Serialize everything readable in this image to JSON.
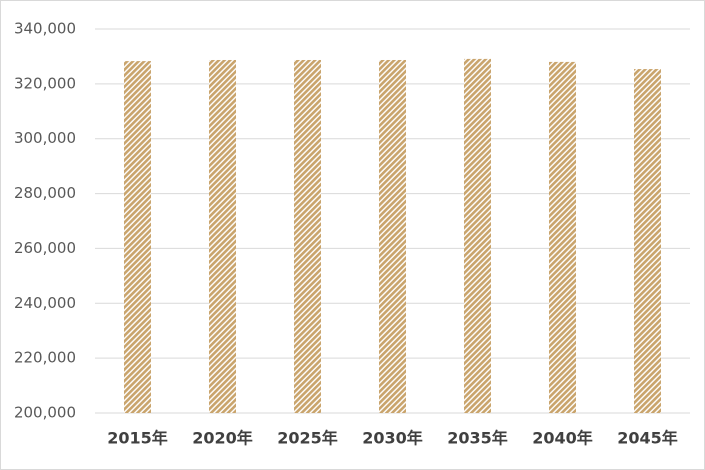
{
  "chart_data": {
    "type": "bar",
    "categories": [
      "2015年",
      "2020年",
      "2025年",
      "2030年",
      "2035年",
      "2040年",
      "2045年"
    ],
    "values": [
      328300,
      328700,
      328700,
      328700,
      329100,
      328000,
      325400
    ],
    "color": "#c9a46c",
    "ylim": [
      200000,
      340000
    ],
    "yticks": [
      {
        "value": 200000,
        "label": "200,000"
      },
      {
        "value": 220000,
        "label": "220,000"
      },
      {
        "value": 240000,
        "label": "240,000"
      },
      {
        "value": 260000,
        "label": "260,000"
      },
      {
        "value": 280000,
        "label": "280,000"
      },
      {
        "value": 300000,
        "label": "300,000"
      },
      {
        "value": 320000,
        "label": "320,000"
      },
      {
        "value": 340000,
        "label": "340,000"
      }
    ],
    "grid": true
  }
}
